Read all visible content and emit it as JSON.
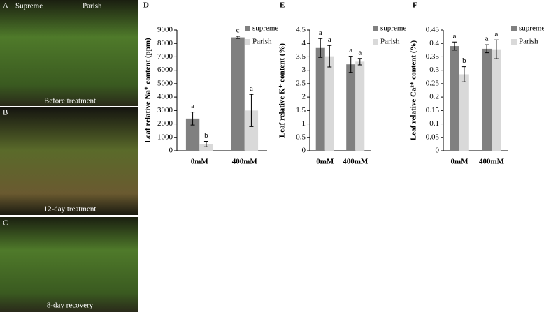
{
  "photos": [
    {
      "panel": "A",
      "labels": [
        "Supreme",
        "Parish"
      ],
      "caption": "Before treatment"
    },
    {
      "panel": "B",
      "caption": "12-day treatment"
    },
    {
      "panel": "C",
      "caption": "8-day recovery"
    }
  ],
  "chart_data": [
    {
      "type": "bar",
      "panel": "D",
      "ylabel": "Leaf relative Na⁺ content (ppm)",
      "categories": [
        "0mM",
        "400mM"
      ],
      "series": [
        {
          "name": "supreme",
          "color": "#808080",
          "values": [
            2400,
            8450
          ],
          "errors": [
            480,
            80
          ],
          "annotations": [
            "a",
            "c"
          ]
        },
        {
          "name": "Parish",
          "color": "#d9d9d9",
          "values": [
            500,
            3000
          ],
          "errors": [
            200,
            1200
          ],
          "annotations": [
            "b",
            "a"
          ]
        }
      ],
      "ylim": [
        0,
        9000
      ],
      "yticks": [
        0,
        1000,
        2000,
        3000,
        4000,
        5000,
        6000,
        7000,
        8000,
        9000
      ]
    },
    {
      "type": "bar",
      "panel": "E",
      "ylabel": "Leaf relative K⁺ content  (%)",
      "categories": [
        "0mM",
        "400mM"
      ],
      "series": [
        {
          "name": "supreme",
          "color": "#808080",
          "values": [
            3.83,
            3.22
          ],
          "errors": [
            0.35,
            0.3
          ],
          "annotations": [
            "a",
            "a"
          ]
        },
        {
          "name": "Parish",
          "color": "#d9d9d9",
          "values": [
            3.52,
            3.32
          ],
          "errors": [
            0.4,
            0.12
          ],
          "annotations": [
            "a",
            "a"
          ]
        }
      ],
      "ylim": [
        0,
        4.5
      ],
      "yticks": [
        0,
        0.5,
        1,
        1.5,
        2,
        2.5,
        3,
        3.5,
        4,
        4.5
      ]
    },
    {
      "type": "bar",
      "panel": "F",
      "ylabel": "Leaf  relative Ca²⁺ content (%)",
      "categories": [
        "0mM",
        "400mM"
      ],
      "series": [
        {
          "name": "supreme",
          "color": "#808080",
          "values": [
            0.39,
            0.38
          ],
          "errors": [
            0.015,
            0.015
          ],
          "annotations": [
            "a",
            "a"
          ]
        },
        {
          "name": "Parish",
          "color": "#d9d9d9",
          "values": [
            0.285,
            0.378
          ],
          "errors": [
            0.028,
            0.035
          ],
          "annotations": [
            "b",
            "a"
          ]
        }
      ],
      "ylim": [
        0,
        0.45
      ],
      "yticks": [
        0,
        0.05,
        0.1,
        0.15,
        0.2,
        0.25,
        0.3,
        0.35,
        0.4,
        0.45
      ]
    }
  ]
}
